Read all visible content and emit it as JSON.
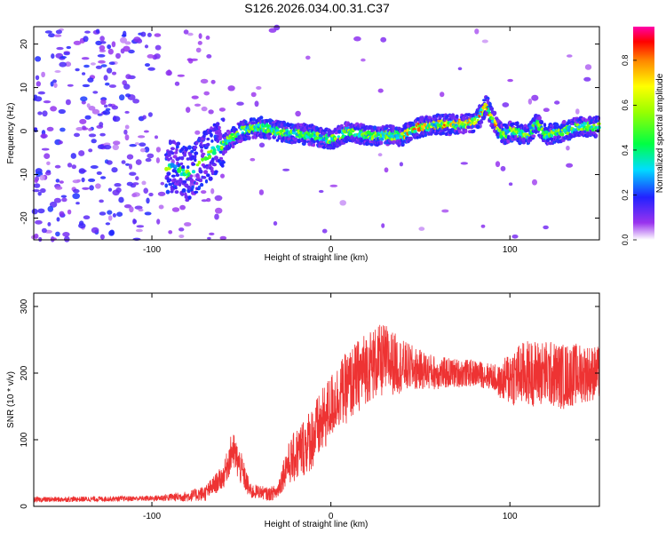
{
  "chart_data": [
    {
      "type": "heatmap",
      "title": "S126.2026.034.00.31.C37",
      "xlabel": "Height of straight line (km)",
      "ylabel": "Frequency (Hz)",
      "xlim": [
        -166,
        150
      ],
      "ylim": [
        -25,
        24
      ],
      "xticks": [
        -100,
        0,
        100
      ],
      "yticks": [
        -20,
        -10,
        0,
        10,
        20
      ],
      "ridge": {
        "x": [
          -88,
          -80,
          -70,
          -60,
          -50,
          -40,
          -30,
          -20,
          -10,
          0,
          10,
          20,
          30,
          40,
          50,
          60,
          70,
          80,
          84,
          87,
          90,
          96,
          100,
          110,
          115,
          120,
          130,
          140,
          148
        ],
        "y": [
          -8,
          -10,
          -6,
          -3,
          0,
          1,
          0,
          -0.5,
          -1,
          -2,
          0,
          -1,
          -1,
          -1,
          1,
          1.5,
          1.5,
          2,
          4,
          6,
          3,
          -1,
          0,
          -1,
          2,
          -1,
          0,
          1,
          1
        ]
      },
      "colorbar": {
        "label": "Normalized spectral amplitude",
        "ticks": [
          "0.0",
          "0.2",
          "0.4",
          "0.6",
          "0.8"
        ],
        "range": [
          0,
          0.95
        ]
      }
    },
    {
      "type": "line",
      "xlabel": "Height of straight line (km)",
      "ylabel": "SNR (10 * v/v)",
      "xlim": [
        -166,
        150
      ],
      "ylim": [
        0,
        320
      ],
      "xticks": [
        -100,
        0,
        100
      ],
      "yticks": [
        0,
        100,
        200,
        300
      ],
      "series": [
        {
          "name": "SNR",
          "color": "#ee3333",
          "x": [
            -166,
            -100,
            -80,
            -70,
            -60,
            -55,
            -50,
            -45,
            -40,
            -35,
            -30,
            -25,
            -20,
            -15,
            -10,
            -5,
            0,
            5,
            10,
            15,
            20,
            30,
            40,
            50,
            60,
            70,
            80,
            90,
            95,
            100,
            110,
            120,
            130,
            140,
            150
          ],
          "y": [
            10,
            12,
            15,
            20,
            45,
            85,
            55,
            22,
            22,
            18,
            22,
            60,
            75,
            90,
            105,
            125,
            150,
            170,
            180,
            195,
            210,
            220,
            210,
            205,
            200,
            200,
            200,
            195,
            185,
            195,
            200,
            200,
            195,
            200,
            200
          ],
          "noise": [
            4,
            4,
            8,
            12,
            18,
            30,
            25,
            12,
            10,
            10,
            12,
            28,
            40,
            45,
            50,
            50,
            50,
            50,
            55,
            55,
            55,
            55,
            40,
            30,
            25,
            22,
            20,
            20,
            25,
            45,
            50,
            50,
            50,
            45,
            40
          ]
        }
      ]
    }
  ]
}
